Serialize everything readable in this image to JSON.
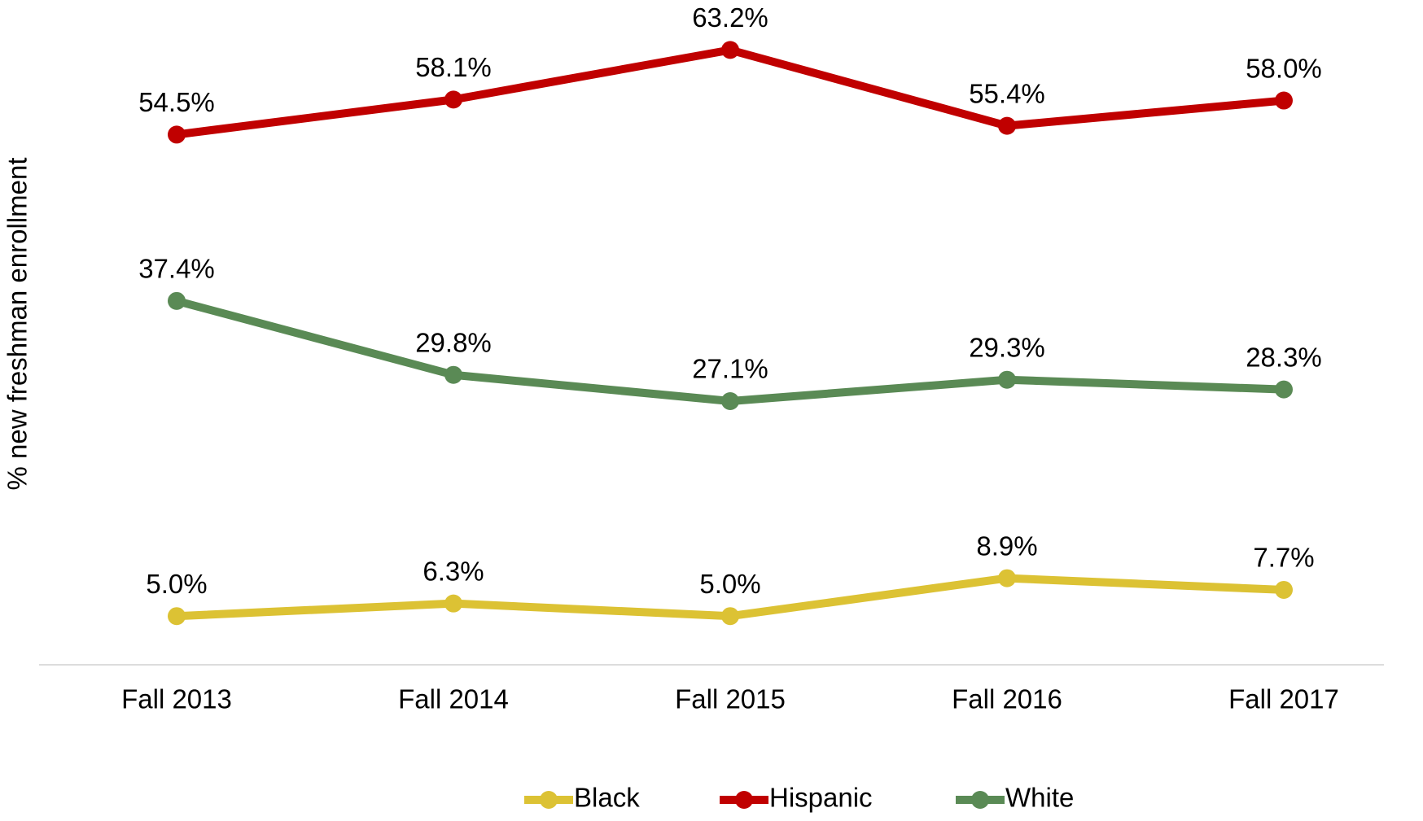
{
  "chart_data": {
    "type": "line",
    "y_label": "% new freshman enrollment",
    "categories": [
      "Fall 2013",
      "Fall 2014",
      "Fall 2015",
      "Fall 2016",
      "Fall 2017"
    ],
    "series": [
      {
        "name": "Black",
        "color": "#dcc234",
        "values": [
          5.0,
          6.3,
          5.0,
          8.9,
          7.7
        ],
        "value_labels": [
          "5.0%",
          "6.3%",
          "5.0%",
          "8.9%",
          "7.7%"
        ]
      },
      {
        "name": "Hispanic",
        "color": "#c00000",
        "values": [
          54.5,
          58.1,
          63.2,
          55.4,
          58.0
        ],
        "value_labels": [
          "54.5%",
          "58.1%",
          "63.2%",
          "55.4%",
          "58.0%"
        ]
      },
      {
        "name": "White",
        "color": "#5a8a55",
        "values": [
          37.4,
          29.8,
          27.1,
          29.3,
          28.3
        ],
        "value_labels": [
          "37.4%",
          "29.8%",
          "27.1%",
          "29.3%",
          "28.3%"
        ]
      }
    ],
    "ylim": [
      0,
      68
    ],
    "legend": "bottom"
  }
}
